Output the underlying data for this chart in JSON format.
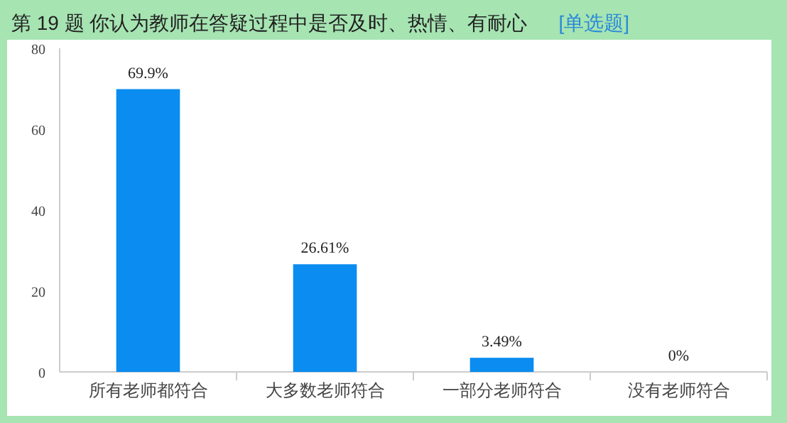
{
  "chart_data": {
    "type": "bar",
    "title": "第 19 题  你认为教师在答疑过程中是否及时、热情、有耐心",
    "subtitle": "[单选题]",
    "categories": [
      "所有老师都符合",
      "大多数老师符合",
      "一部分老师符合",
      "没有老师符合"
    ],
    "values": [
      69.9,
      26.61,
      3.49,
      0
    ],
    "value_labels": [
      "69.9%",
      "26.61%",
      "3.49%",
      "0%"
    ],
    "color": "#0a8cf0",
    "ylim": [
      0,
      80
    ],
    "yticks": [
      0,
      20,
      40,
      60,
      80
    ],
    "grid": false
  }
}
